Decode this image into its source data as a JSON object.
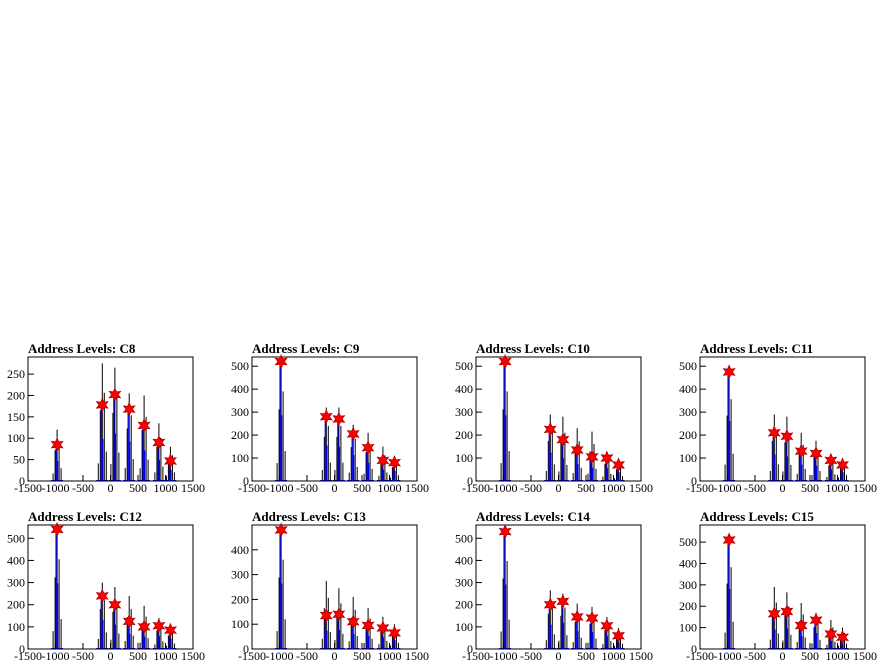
{
  "colors": {
    "black_hist": "#000000",
    "blue_hist": "#0000ff",
    "marker": "#ff0000",
    "marker_edge": "#b00000"
  },
  "chart_data": [
    {
      "type": "bar",
      "title": "Address Levels: C8",
      "xlim": [
        -1500,
        1500
      ],
      "ylim": [
        0,
        290
      ],
      "yticks": [
        0,
        50,
        100,
        150,
        200,
        250
      ],
      "xticks": [
        "-1500",
        "-1000",
        "-500",
        "0",
        "500",
        "1000",
        "1500"
      ],
      "peaks": [
        {
          "x": -970,
          "black": 120,
          "blue": 85
        },
        {
          "x": -150,
          "black": 275,
          "blue": 178
        },
        {
          "x": 80,
          "black": 265,
          "blue": 202
        },
        {
          "x": 340,
          "black": 205,
          "blue": 168
        },
        {
          "x": 610,
          "black": 200,
          "blue": 130
        },
        {
          "x": 880,
          "black": 135,
          "blue": 90
        },
        {
          "x": 1090,
          "black": 80,
          "blue": 47
        }
      ]
    },
    {
      "type": "bar",
      "title": "Address Levels: C9",
      "xlim": [
        -1500,
        1500
      ],
      "ylim": [
        0,
        540
      ],
      "yticks": [
        0,
        100,
        200,
        300,
        400,
        500
      ],
      "xticks": [
        "-1500",
        "-1000",
        "-500",
        "0",
        "500",
        "1000",
        "1500"
      ],
      "peaks": [
        {
          "x": -970,
          "black": 520,
          "blue": 520
        },
        {
          "x": -150,
          "black": 320,
          "blue": 280
        },
        {
          "x": 80,
          "black": 320,
          "blue": 270
        },
        {
          "x": 340,
          "black": 245,
          "blue": 205
        },
        {
          "x": 610,
          "black": 210,
          "blue": 145
        },
        {
          "x": 880,
          "black": 150,
          "blue": 90
        },
        {
          "x": 1090,
          "black": 100,
          "blue": 80
        }
      ]
    },
    {
      "type": "bar",
      "title": "Address Levels: C10",
      "xlim": [
        -1500,
        1500
      ],
      "ylim": [
        0,
        540
      ],
      "yticks": [
        0,
        100,
        200,
        300,
        400,
        500
      ],
      "xticks": [
        "-1500",
        "-1000",
        "-500",
        "0",
        "500",
        "1000",
        "1500"
      ],
      "peaks": [
        {
          "x": -970,
          "black": 520,
          "blue": 520
        },
        {
          "x": -150,
          "black": 290,
          "blue": 225
        },
        {
          "x": 80,
          "black": 280,
          "blue": 180
        },
        {
          "x": 340,
          "black": 230,
          "blue": 135
        },
        {
          "x": 610,
          "black": 215,
          "blue": 105
        },
        {
          "x": 880,
          "black": 125,
          "blue": 100
        },
        {
          "x": 1090,
          "black": 85,
          "blue": 70
        }
      ]
    },
    {
      "type": "bar",
      "title": "Address Levels: C11",
      "xlim": [
        -1500,
        1500
      ],
      "ylim": [
        0,
        540
      ],
      "yticks": [
        0,
        100,
        200,
        300,
        400,
        500
      ],
      "xticks": [
        "-1500",
        "-1000",
        "-500",
        "0",
        "500",
        "1000",
        "1500"
      ],
      "peaks": [
        {
          "x": -970,
          "black": 475,
          "blue": 475
        },
        {
          "x": -150,
          "black": 290,
          "blue": 210
        },
        {
          "x": 80,
          "black": 280,
          "blue": 195
        },
        {
          "x": 340,
          "black": 210,
          "blue": 130
        },
        {
          "x": 610,
          "black": 175,
          "blue": 120
        },
        {
          "x": 880,
          "black": 115,
          "blue": 90
        },
        {
          "x": 1090,
          "black": 100,
          "blue": 70
        }
      ]
    },
    {
      "type": "bar",
      "title": "Address Levels: C12",
      "xlim": [
        -1500,
        1500
      ],
      "ylim": [
        0,
        560
      ],
      "yticks": [
        0,
        100,
        200,
        300,
        400,
        500
      ],
      "xticks": [
        "-1500",
        "-1000",
        "-500",
        "0",
        "500",
        "1000",
        "1500"
      ],
      "peaks": [
        {
          "x": -970,
          "black": 540,
          "blue": 540
        },
        {
          "x": -150,
          "black": 300,
          "blue": 240
        },
        {
          "x": 80,
          "black": 280,
          "blue": 200
        },
        {
          "x": 340,
          "black": 240,
          "blue": 125
        },
        {
          "x": 610,
          "black": 195,
          "blue": 100
        },
        {
          "x": 880,
          "black": 140,
          "blue": 105
        },
        {
          "x": 1090,
          "black": 100,
          "blue": 85
        }
      ]
    },
    {
      "type": "bar",
      "title": "Address Levels: C13",
      "xlim": [
        -1500,
        1500
      ],
      "ylim": [
        0,
        500
      ],
      "yticks": [
        0,
        100,
        200,
        300,
        400
      ],
      "xticks": [
        "-1500",
        "-1000",
        "-500",
        "0",
        "500",
        "1000",
        "1500"
      ],
      "peaks": [
        {
          "x": -970,
          "black": 480,
          "blue": 480
        },
        {
          "x": -150,
          "black": 275,
          "blue": 135
        },
        {
          "x": 80,
          "black": 245,
          "blue": 140
        },
        {
          "x": 340,
          "black": 210,
          "blue": 110
        },
        {
          "x": 610,
          "black": 165,
          "blue": 95
        },
        {
          "x": 880,
          "black": 130,
          "blue": 85
        },
        {
          "x": 1090,
          "black": 100,
          "blue": 65
        }
      ]
    },
    {
      "type": "bar",
      "title": "Address Levels: C14",
      "xlim": [
        -1500,
        1500
      ],
      "ylim": [
        0,
        560
      ],
      "yticks": [
        0,
        100,
        200,
        300,
        400,
        500
      ],
      "xticks": [
        "-1500",
        "-1000",
        "-500",
        "0",
        "500",
        "1000",
        "1500"
      ],
      "peaks": [
        {
          "x": -970,
          "black": 530,
          "blue": 530
        },
        {
          "x": -150,
          "black": 265,
          "blue": 200
        },
        {
          "x": 80,
          "black": 250,
          "blue": 215
        },
        {
          "x": 340,
          "black": 205,
          "blue": 145
        },
        {
          "x": 610,
          "black": 190,
          "blue": 140
        },
        {
          "x": 880,
          "black": 145,
          "blue": 105
        },
        {
          "x": 1090,
          "black": 95,
          "blue": 60
        }
      ]
    },
    {
      "type": "bar",
      "title": "Address Levels: C15",
      "xlim": [
        -1500,
        1500
      ],
      "ylim": [
        0,
        580
      ],
      "yticks": [
        0,
        100,
        200,
        300,
        400,
        500
      ],
      "xticks": [
        "-1500",
        "-1000",
        "-500",
        "0",
        "500",
        "1000",
        "1500"
      ],
      "peaks": [
        {
          "x": -970,
          "black": 510,
          "blue": 510
        },
        {
          "x": -150,
          "black": 290,
          "blue": 165
        },
        {
          "x": 80,
          "black": 265,
          "blue": 175
        },
        {
          "x": 340,
          "black": 215,
          "blue": 110
        },
        {
          "x": 610,
          "black": 170,
          "blue": 135
        },
        {
          "x": 880,
          "black": 135,
          "blue": 70
        },
        {
          "x": 1090,
          "black": 100,
          "blue": 55
        }
      ]
    }
  ]
}
